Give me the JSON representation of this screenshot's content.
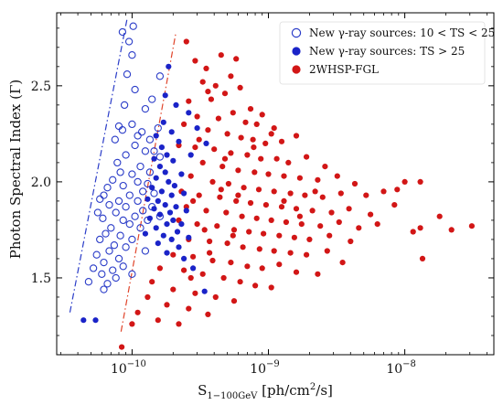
{
  "chart_data": {
    "type": "scatter",
    "xlabel": "S1−100GeV [ph/cm2/s]",
    "xlabel_main": "S",
    "xlabel_sub": "1−100GeV",
    "xlabel_rest": " [ph/cm",
    "xlabel_sup": "2",
    "xlabel_end": "/s]",
    "ylabel": "Photon Spectral Index  (Γ)",
    "xscale": "log",
    "xlim": [
      2.8e-11,
      4.5e-08
    ],
    "ylim": [
      1.1,
      2.88
    ],
    "xticks": [
      {
        "value": 1e-10,
        "base": "10",
        "exp": "−10"
      },
      {
        "value": 1e-09,
        "base": "10",
        "exp": "−9"
      },
      {
        "value": 1e-08,
        "base": "10",
        "exp": "−8"
      }
    ],
    "yticks": [
      {
        "value": 1.5,
        "label": "1.5"
      },
      {
        "value": 2.0,
        "label": "2.0"
      },
      {
        "value": 2.5,
        "label": "2.5"
      }
    ],
    "grid": false,
    "legend_position": "top-right",
    "sensitivity_lines": [
      {
        "color": "#2a3cc8",
        "style": "dashdot",
        "points": [
          [
            3.5e-11,
            1.32
          ],
          [
            9.2e-11,
            2.85
          ]
        ]
      },
      {
        "color": "#e0442a",
        "style": "dashdot",
        "points": [
          [
            8.3e-11,
            1.22
          ],
          [
            2.1e-10,
            2.78
          ]
        ]
      }
    ],
    "series": [
      {
        "name": "New γ-ray sources: 10 < TS < 25",
        "marker": "open-circle",
        "color": "#2a3cc8",
        "points": [
          [
            8.5e-11,
            2.78
          ],
          [
            1.02e-10,
            2.81
          ],
          [
            9.5e-11,
            2.73
          ],
          [
            1e-10,
            2.66
          ],
          [
            9.2e-11,
            2.56
          ],
          [
            1.05e-10,
            2.48
          ],
          [
            1.6e-10,
            2.55
          ],
          [
            1.4e-10,
            2.43
          ],
          [
            1.25e-10,
            2.38
          ],
          [
            8.8e-11,
            2.4
          ],
          [
            1e-10,
            2.3
          ],
          [
            8e-11,
            2.29
          ],
          [
            8.5e-11,
            2.27
          ],
          [
            1.1e-10,
            2.24
          ],
          [
            1.18e-10,
            2.26
          ],
          [
            1.35e-10,
            2.22
          ],
          [
            1.55e-10,
            2.28
          ],
          [
            7.5e-11,
            2.22
          ],
          [
            1.05e-10,
            2.19
          ],
          [
            1.25e-10,
            2.16
          ],
          [
            1.45e-10,
            2.16
          ],
          [
            1.6e-10,
            2.13
          ],
          [
            9e-11,
            2.14
          ],
          [
            7.8e-11,
            2.1
          ],
          [
            1.15e-10,
            2.08
          ],
          [
            1.35e-10,
            2.05
          ],
          [
            8.2e-11,
            2.05
          ],
          [
            1e-10,
            2.04
          ],
          [
            7.2e-11,
            2.01
          ],
          [
            1.1e-10,
            2.0
          ],
          [
            1.3e-10,
            1.99
          ],
          [
            8.6e-11,
            1.98
          ],
          [
            6.6e-11,
            1.97
          ],
          [
            1.2e-10,
            1.95
          ],
          [
            9.6e-11,
            1.93
          ],
          [
            1.45e-10,
            1.94
          ],
          [
            6.2e-11,
            1.93
          ],
          [
            5.8e-11,
            1.91
          ],
          [
            1.1e-10,
            1.9
          ],
          [
            8e-11,
            1.9
          ],
          [
            6.8e-11,
            1.88
          ],
          [
            9e-11,
            1.87
          ],
          [
            1.4e-10,
            1.87
          ],
          [
            1.2e-10,
            1.85
          ],
          [
            5.6e-11,
            1.84
          ],
          [
            7.6e-11,
            1.84
          ],
          [
            1.05e-10,
            1.82
          ],
          [
            6.1e-11,
            1.81
          ],
          [
            8.6e-11,
            1.8
          ],
          [
            1.3e-10,
            1.8
          ],
          [
            1.6e-10,
            1.82
          ],
          [
            9.6e-11,
            1.78
          ],
          [
            7e-11,
            1.76
          ],
          [
            1.15e-10,
            1.76
          ],
          [
            6.4e-11,
            1.73
          ],
          [
            8.2e-11,
            1.72
          ],
          [
            5.8e-11,
            1.7
          ],
          [
            1e-10,
            1.7
          ],
          [
            7.4e-11,
            1.67
          ],
          [
            9e-11,
            1.66
          ],
          [
            6.8e-11,
            1.64
          ],
          [
            1.25e-10,
            1.64
          ],
          [
            5.5e-11,
            1.62
          ],
          [
            8e-11,
            1.6
          ],
          [
            6.2e-11,
            1.58
          ],
          [
            5.2e-11,
            1.55
          ],
          [
            7.2e-11,
            1.54
          ],
          [
            8.6e-11,
            1.56
          ],
          [
            6e-11,
            1.52
          ],
          [
            4.8e-11,
            1.48
          ],
          [
            6.6e-11,
            1.47
          ],
          [
            7.6e-11,
            1.5
          ],
          [
            1e-10,
            1.52
          ],
          [
            6.2e-11,
            1.44
          ]
        ]
      },
      {
        "name": "New γ-ray sources: TS > 25",
        "marker": "filled-circle",
        "color": "#1a23c8",
        "points": [
          [
            1.85e-10,
            2.6
          ],
          [
            1.75e-10,
            2.45
          ],
          [
            2.1e-10,
            2.4
          ],
          [
            1.7e-10,
            2.31
          ],
          [
            1.95e-10,
            2.26
          ],
          [
            1.5e-10,
            2.24
          ],
          [
            2.2e-10,
            2.21
          ],
          [
            1.65e-10,
            2.18
          ],
          [
            1.8e-10,
            2.14
          ],
          [
            2e-10,
            2.11
          ],
          [
            1.45e-10,
            2.12
          ],
          [
            1.6e-10,
            2.08
          ],
          [
            1.75e-10,
            2.05
          ],
          [
            2.3e-10,
            2.04
          ],
          [
            1.5e-10,
            2.02
          ],
          [
            1.85e-10,
            2.0
          ],
          [
            2.05e-10,
            1.98
          ],
          [
            1.4e-10,
            1.97
          ],
          [
            1.65e-10,
            1.95
          ],
          [
            1.95e-10,
            1.93
          ],
          [
            2.4e-10,
            1.94
          ],
          [
            1.3e-10,
            1.91
          ],
          [
            1.55e-10,
            1.9
          ],
          [
            1.75e-10,
            1.88
          ],
          [
            2.1e-10,
            1.87
          ],
          [
            1.45e-10,
            1.86
          ],
          [
            1.9e-10,
            1.84
          ],
          [
            2.5e-10,
            1.85
          ],
          [
            1.6e-10,
            1.83
          ],
          [
            1.35e-10,
            1.81
          ],
          [
            2e-10,
            1.8
          ],
          [
            1.8e-10,
            1.78
          ],
          [
            2.3e-10,
            1.78
          ],
          [
            1.5e-10,
            1.76
          ],
          [
            2.15e-10,
            1.74
          ],
          [
            1.7e-10,
            1.72
          ],
          [
            1.25e-10,
            1.73
          ],
          [
            1.95e-10,
            1.7
          ],
          [
            2.6e-10,
            1.71
          ],
          [
            1.55e-10,
            1.68
          ],
          [
            2.2e-10,
            1.66
          ],
          [
            1.8e-10,
            1.63
          ],
          [
            2.4e-10,
            1.6
          ],
          [
            2.8e-10,
            1.55
          ],
          [
            3.4e-10,
            1.43
          ],
          [
            2.6e-10,
            2.36
          ],
          [
            3e-10,
            2.28
          ],
          [
            2.7e-10,
            2.14
          ],
          [
            3.5e-10,
            2.2
          ],
          [
            4.4e-11,
            1.28
          ],
          [
            5.4e-11,
            1.28
          ]
        ]
      },
      {
        "name": "2WHSP-FGL",
        "marker": "filled-circle",
        "color": "#d21616",
        "points": [
          [
            2.5e-10,
            2.73
          ],
          [
            2.9e-10,
            2.63
          ],
          [
            3.5e-10,
            2.59
          ],
          [
            4.5e-10,
            2.66
          ],
          [
            5.8e-10,
            2.64
          ],
          [
            3.3e-10,
            2.52
          ],
          [
            4.1e-10,
            2.5
          ],
          [
            5.3e-10,
            2.55
          ],
          [
            2.6e-10,
            2.42
          ],
          [
            3.8e-10,
            2.43
          ],
          [
            4.8e-10,
            2.46
          ],
          [
            6.2e-10,
            2.49
          ],
          [
            7.4e-10,
            2.38
          ],
          [
            9e-10,
            2.35
          ],
          [
            3e-10,
            2.34
          ],
          [
            4.3e-10,
            2.33
          ],
          [
            5.5e-10,
            2.36
          ],
          [
            6.8e-10,
            2.31
          ],
          [
            8.2e-10,
            2.3
          ],
          [
            1.1e-09,
            2.28
          ],
          [
            2.4e-10,
            2.3
          ],
          [
            3.6e-10,
            2.27
          ],
          [
            5e-10,
            2.25
          ],
          [
            6.3e-10,
            2.23
          ],
          [
            7.7e-10,
            2.22
          ],
          [
            9.5e-10,
            2.2
          ],
          [
            1.25e-09,
            2.21
          ],
          [
            1.6e-09,
            2.24
          ],
          [
            2.2e-10,
            2.19
          ],
          [
            2.9e-10,
            2.18
          ],
          [
            4e-10,
            2.17
          ],
          [
            5.3e-10,
            2.15
          ],
          [
            7e-10,
            2.14
          ],
          [
            8.8e-10,
            2.12
          ],
          [
            1.15e-09,
            2.12
          ],
          [
            1.4e-09,
            2.1
          ],
          [
            1.9e-09,
            2.13
          ],
          [
            2.6e-09,
            2.08
          ],
          [
            3.3e-10,
            2.1
          ],
          [
            4.6e-10,
            2.08
          ],
          [
            6e-10,
            2.06
          ],
          [
            7.9e-10,
            2.05
          ],
          [
            1e-09,
            2.04
          ],
          [
            1.3e-09,
            2.03
          ],
          [
            1.7e-09,
            2.02
          ],
          [
            2.3e-09,
            2.01
          ],
          [
            3.2e-09,
            2.03
          ],
          [
            4.3e-09,
            1.99
          ],
          [
            2.7e-10,
            2.03
          ],
          [
            3.9e-10,
            2.0
          ],
          [
            5.1e-10,
            1.99
          ],
          [
            6.6e-10,
            1.97
          ],
          [
            8.5e-10,
            1.96
          ],
          [
            1.1e-09,
            1.95
          ],
          [
            1.45e-09,
            1.94
          ],
          [
            1.85e-09,
            1.93
          ],
          [
            2.5e-09,
            1.92
          ],
          [
            3.4e-09,
            1.94
          ],
          [
            5.2e-09,
            1.93
          ],
          [
            7e-09,
            1.95
          ],
          [
            2.3e-10,
            1.95
          ],
          [
            3.1e-10,
            1.93
          ],
          [
            4.4e-10,
            1.92
          ],
          [
            5.8e-10,
            1.9
          ],
          [
            7.4e-10,
            1.89
          ],
          [
            9.6e-10,
            1.88
          ],
          [
            1.25e-09,
            1.87
          ],
          [
            1.6e-09,
            1.86
          ],
          [
            2.1e-09,
            1.85
          ],
          [
            2.9e-09,
            1.84
          ],
          [
            3.9e-09,
            1.86
          ],
          [
            5.6e-09,
            1.83
          ],
          [
            8.4e-09,
            1.88
          ],
          [
            2.5e-10,
            1.87
          ],
          [
            3.5e-10,
            1.85
          ],
          [
            4.9e-10,
            1.84
          ],
          [
            6.4e-10,
            1.82
          ],
          [
            8.2e-10,
            1.81
          ],
          [
            1.05e-09,
            1.8
          ],
          [
            1.35e-09,
            1.79
          ],
          [
            1.75e-09,
            1.78
          ],
          [
            2.4e-09,
            1.77
          ],
          [
            3.3e-09,
            1.79
          ],
          [
            4.6e-09,
            1.76
          ],
          [
            6.3e-09,
            1.78
          ],
          [
            1.15e-08,
            1.74
          ],
          [
            2.2e-08,
            1.75
          ],
          [
            3.1e-08,
            1.77
          ],
          [
            2.2e-10,
            1.8
          ],
          [
            3e-10,
            1.78
          ],
          [
            4.2e-10,
            1.77
          ],
          [
            5.6e-10,
            1.75
          ],
          [
            7.2e-10,
            1.74
          ],
          [
            9.2e-10,
            1.73
          ],
          [
            1.2e-09,
            1.72
          ],
          [
            1.55e-09,
            1.71
          ],
          [
            2e-09,
            1.7
          ],
          [
            2.8e-09,
            1.72
          ],
          [
            4e-09,
            1.69
          ],
          [
            1.3e-08,
            1.76
          ],
          [
            2.6e-10,
            1.7
          ],
          [
            3.7e-10,
            1.69
          ],
          [
            5e-10,
            1.68
          ],
          [
            6.5e-10,
            1.66
          ],
          [
            8.6e-10,
            1.65
          ],
          [
            1.1e-09,
            1.64
          ],
          [
            1.45e-09,
            1.63
          ],
          [
            1.9e-09,
            1.62
          ],
          [
            2.7e-09,
            1.64
          ],
          [
            3.5e-09,
            1.58
          ],
          [
            2e-10,
            1.62
          ],
          [
            2.8e-10,
            1.61
          ],
          [
            3.9e-10,
            1.59
          ],
          [
            5.3e-10,
            1.58
          ],
          [
            7e-10,
            1.56
          ],
          [
            9e-10,
            1.55
          ],
          [
            1.2e-09,
            1.57
          ],
          [
            1.6e-09,
            1.53
          ],
          [
            2.3e-09,
            1.52
          ],
          [
            1.35e-08,
            1.6
          ],
          [
            1.6e-10,
            1.55
          ],
          [
            2.4e-10,
            1.54
          ],
          [
            3.3e-10,
            1.52
          ],
          [
            4.7e-10,
            1.5
          ],
          [
            6.2e-10,
            1.48
          ],
          [
            8e-10,
            1.46
          ],
          [
            1.05e-09,
            1.45
          ],
          [
            1.4e-10,
            1.48
          ],
          [
            2e-10,
            1.44
          ],
          [
            2.9e-10,
            1.42
          ],
          [
            4.1e-10,
            1.4
          ],
          [
            5.6e-10,
            1.38
          ],
          [
            1.3e-10,
            1.4
          ],
          [
            1.8e-10,
            1.36
          ],
          [
            2.6e-10,
            1.34
          ],
          [
            3.6e-10,
            1.31
          ],
          [
            1.1e-10,
            1.32
          ],
          [
            1.55e-10,
            1.28
          ],
          [
            2.2e-10,
            1.26
          ],
          [
            1e-10,
            1.26
          ],
          [
            8.4e-11,
            1.14
          ],
          [
            1e-08,
            2.0
          ],
          [
            1.3e-08,
            2.0
          ],
          [
            8.8e-09,
            1.96
          ],
          [
            1.8e-08,
            1.82
          ],
          [
            3.6e-10,
            2.47
          ],
          [
            2.8e-10,
            1.9
          ],
          [
            3.4e-10,
            1.75
          ],
          [
            4.8e-10,
            2.12
          ],
          [
            6e-10,
            1.93
          ],
          [
            7.8e-10,
            2.18
          ],
          [
            1.05e-09,
            2.25
          ],
          [
            1.3e-09,
            1.9
          ],
          [
            1.7e-09,
            1.82
          ],
          [
            2.2e-09,
            1.95
          ],
          [
            5.5e-10,
            1.72
          ],
          [
            3.7e-10,
            1.63
          ],
          [
            2.7e-10,
            1.5
          ],
          [
            4.5e-10,
            1.96
          ],
          [
            3.1e-10,
            2.22
          ]
        ]
      }
    ]
  }
}
